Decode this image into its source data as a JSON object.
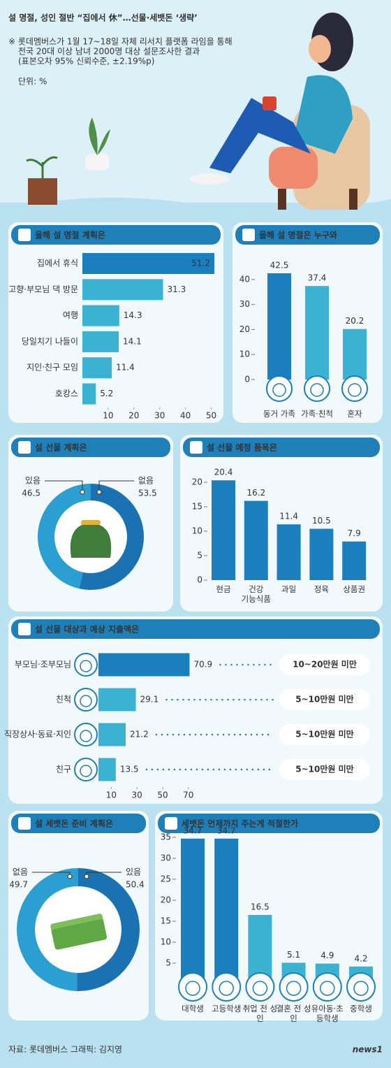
{
  "header": {
    "title": "설 명절, 성인 절반 “집에서 休”…선물·세뱃돈 ‘생략’",
    "notes": [
      "※ 롯데멤버스가 1월 17~18일 자체 리서치 플랫폼 라임을 통해",
      "전국 20대 이상 남녀 2000명 대상 설문조사한 결과",
      "(표본오차 95% 신뢰수준, ±2.19%p)"
    ],
    "unit": "단위: %"
  },
  "chart_data": [
    {
      "type": "hbar",
      "title": "올해 설 명절 계획은",
      "categories": [
        "집에서 휴식",
        "고향·부모님 댁 방문",
        "여행",
        "당일치기 나들이",
        "지인·친구 모임",
        "호캉스"
      ],
      "values": [
        51.2,
        31.3,
        14.3,
        14.1,
        11.4,
        5.2
      ],
      "colors": [
        "#1b7fbd",
        "#3bb2d2",
        "#3bb2d2",
        "#3bb2d2",
        "#3bb2d2",
        "#3bb2d2"
      ],
      "xlim": [
        0,
        55
      ],
      "xticks": [
        10,
        20,
        30,
        40,
        50
      ]
    },
    {
      "type": "vbar",
      "title": "올해 설 명절은 누구와",
      "categories": [
        "동거 가족",
        "가족·친척",
        "혼자"
      ],
      "values": [
        42.5,
        37.4,
        20.2
      ],
      "colors": [
        "#1b7fbd",
        "#3bb2d2",
        "#3bb2d2"
      ],
      "ylim": [
        0,
        45
      ],
      "yticks": [
        0,
        10,
        20,
        30,
        40
      ]
    },
    {
      "type": "donut",
      "title": "설 선물 계획은",
      "categories": [
        "있음",
        "없음"
      ],
      "values": [
        46.5,
        53.5
      ],
      "colors": [
        "#2c9fd2",
        "#1b72b2"
      ]
    },
    {
      "type": "vbar",
      "title": "설 선물 예정 품목은",
      "categories": [
        "현금",
        "건강 기능식품",
        "과일",
        "정육",
        "상품권"
      ],
      "values": [
        20.4,
        16.2,
        11.4,
        10.5,
        7.9
      ],
      "colors": [
        "#1b7fbd",
        "#1b7fbd",
        "#1b7fbd",
        "#1b7fbd",
        "#1b7fbd"
      ],
      "ylim": [
        0,
        22
      ],
      "yticks": [
        0,
        5,
        10,
        15,
        20
      ]
    },
    {
      "type": "hbar",
      "title": "설 선물 대상과 예상 지출액은",
      "categories": [
        "부모님·조부모님",
        "친척",
        "직장상사·동료·지인",
        "친구"
      ],
      "values": [
        70.9,
        29.1,
        21.2,
        13.5
      ],
      "annotations": [
        "10~20만원 미만",
        "5~10만원 미만",
        "5~10만원 미만",
        "5~10만원 미만"
      ],
      "colors": [
        "#1b7fbd",
        "#3bb2d2",
        "#3bb2d2",
        "#3bb2d2"
      ],
      "xlim": [
        0,
        75
      ],
      "xticks": [
        10,
        30,
        50,
        70
      ]
    },
    {
      "type": "donut",
      "title": "설 세뱃돈 준비 계획은",
      "categories": [
        "없음",
        "있음"
      ],
      "values": [
        49.7,
        50.4
      ],
      "colors": [
        "#2c9fd2",
        "#1b72b2"
      ]
    },
    {
      "type": "vbar",
      "title": "세뱃돈 언제까지 주는게 적절한가",
      "categories": [
        "대학생",
        "고등학생",
        "취업 전 성인",
        "결혼 전 성인",
        "유아동·초등학생",
        "중학생"
      ],
      "values": [
        34.7,
        34.7,
        16.5,
        5.1,
        4.9,
        4.2
      ],
      "colors": [
        "#1b7fbd",
        "#1b7fbd",
        "#3bb2d2",
        "#3bb2d2",
        "#3bb2d2",
        "#3bb2d2"
      ],
      "ylim": [
        0,
        37
      ],
      "yticks": [
        5,
        10,
        15,
        20,
        25,
        30,
        35
      ]
    }
  ],
  "footer": {
    "source": "자료: 롯데멤버스  그래픽: 김지영",
    "logo": "news1"
  }
}
